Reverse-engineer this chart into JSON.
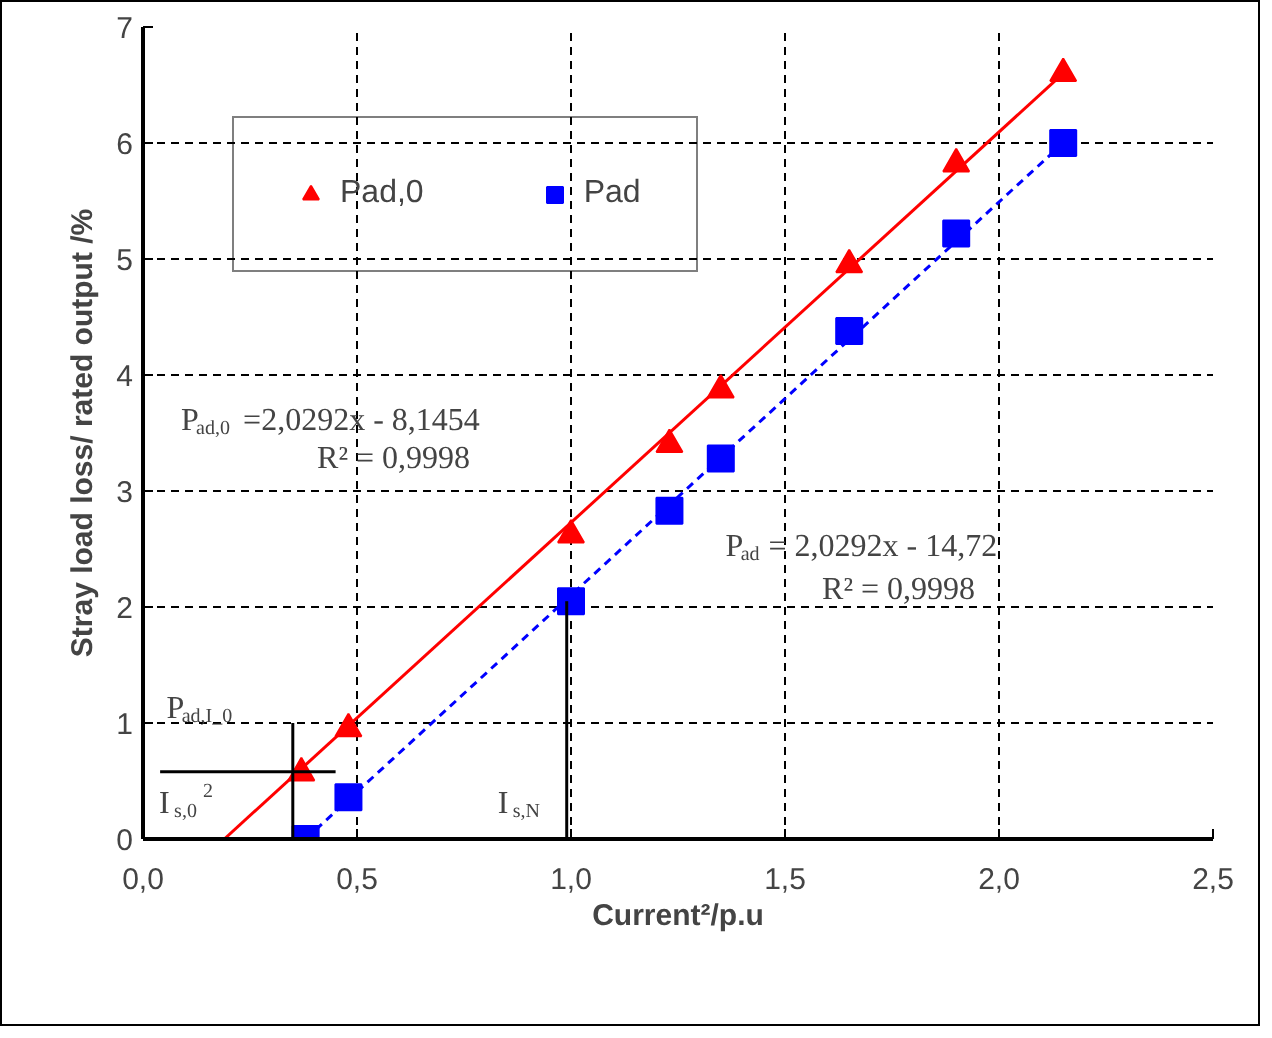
{
  "chart_data": {
    "type": "scatter",
    "xlabel": "Current²/p.u",
    "ylabel": "Stray load loss/ rated output /%",
    "xlim": [
      0,
      2.5
    ],
    "xticks": [
      {
        "value": 0,
        "label": "0,0"
      },
      {
        "value": 0.5,
        "label": "0,5"
      },
      {
        "value": 1,
        "label": "1,0"
      },
      {
        "value": 1.5,
        "label": "1,5"
      },
      {
        "value": 2,
        "label": "2,0"
      },
      {
        "value": 2.5,
        "label": "2,5"
      }
    ],
    "ylim": [
      0,
      7
    ],
    "yticks": [
      0,
      1,
      2,
      3,
      4,
      5,
      6,
      7
    ],
    "grid": true,
    "legend": "top left",
    "series": [
      {
        "name": "Pad,0",
        "color": "#ff0000",
        "marker": "triangle",
        "x": [
          0.37,
          0.48,
          1.0,
          1.23,
          1.35,
          1.65,
          1.9,
          2.15
        ],
        "values": [
          0.57,
          0.95,
          2.62,
          3.4,
          3.87,
          4.95,
          5.82,
          6.6
        ]
      },
      {
        "name": "Pad",
        "color": "#0000ff",
        "marker": "square",
        "x": [
          0.38,
          0.48,
          1.0,
          1.23,
          1.35,
          1.65,
          1.9,
          2.15
        ],
        "values": [
          0.0,
          0.36,
          2.05,
          2.83,
          3.28,
          4.38,
          5.22,
          6.0
        ]
      },
      {
        "type": "line",
        "color": "#ff0000",
        "line_style": "solid",
        "x": [
          0.19,
          2.15
        ],
        "values": [
          0.0,
          6.6
        ]
      },
      {
        "type": "line",
        "color": "#0000ff",
        "line_style": "dashed",
        "x": [
          0.38,
          2.15
        ],
        "values": [
          0.0,
          6.0
        ]
      },
      {
        "type": "line",
        "color": "#000000",
        "line_style": "solid",
        "x": [
          0.35,
          0.35
        ],
        "values": [
          0.0,
          1.0
        ]
      },
      {
        "type": "line",
        "color": "#000000",
        "line_style": "solid",
        "x": [
          0.04,
          0.45
        ],
        "values": [
          0.58,
          0.58
        ]
      },
      {
        "type": "line",
        "color": "#000000",
        "line_style": "solid",
        "x": [
          0.99,
          0.99
        ],
        "values": [
          0.0,
          2.05
        ]
      }
    ],
    "annotations": [
      "P$_{ad,0}$ =2,0292x - 8,1454",
      "R² = 0,9998",
      "P$_{ad}$ = 2,0292x - 14,72",
      "R² = 0,9998",
      "P$_{ad,I_0}$",
      "I$_{s,0}$$^{2}$",
      "I$_{s,N}$"
    ]
  }
}
